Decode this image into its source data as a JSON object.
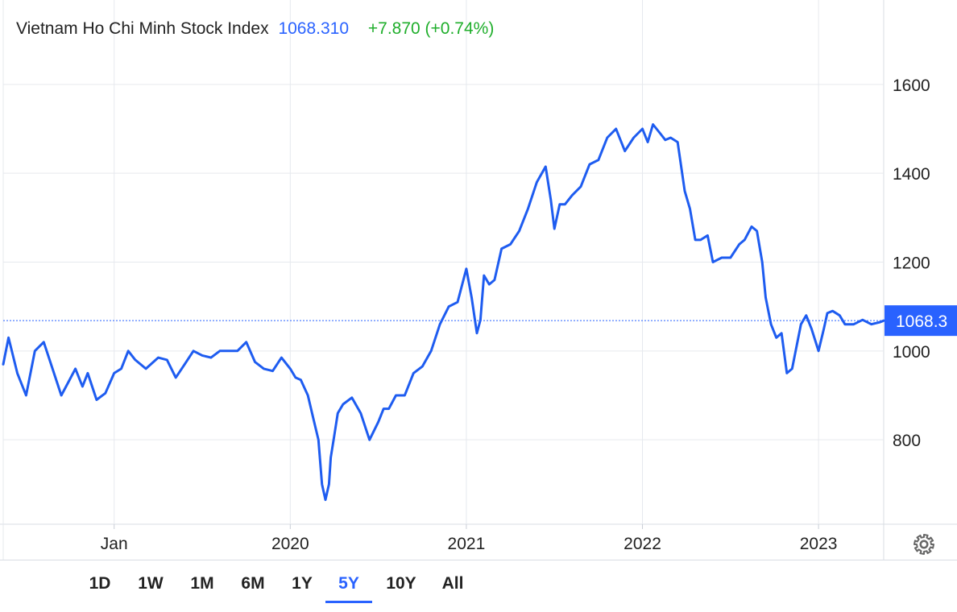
{
  "header": {
    "name": "Vietnam Ho Chi Minh Stock Index",
    "last": "1068.310",
    "change": "+7.870 (+0.74%)"
  },
  "current_label": "1068.3",
  "colors": {
    "line": "#1e5cf0",
    "accent": "#2962ff",
    "positive": "#1fae2b",
    "grid": "#e6e9ee"
  },
  "icons": {
    "settings": "gear-icon"
  },
  "toolbar": {
    "ranges": [
      "1D",
      "1W",
      "1M",
      "6M",
      "1Y",
      "5Y",
      "10Y",
      "All"
    ],
    "selected": "5Y"
  },
  "chart_data": {
    "type": "line",
    "title": "Vietnam Ho Chi Minh Stock Index",
    "y_ticks": [
      800,
      1000,
      1200,
      1400,
      1600
    ],
    "ylim": [
      610,
      1790
    ],
    "x_ticks": [
      {
        "label": "Jan",
        "x": 2019.0
      },
      {
        "label": "2020",
        "x": 2020.0
      },
      {
        "label": "2021",
        "x": 2021.0
      },
      {
        "label": "2022",
        "x": 2022.0
      },
      {
        "label": "2023",
        "x": 2023.0
      }
    ],
    "xlim": [
      2018.37,
      2023.37
    ],
    "grid": true,
    "current_value": 1068.31,
    "series": [
      {
        "x": [
          2018.37,
          2018.4,
          2018.45,
          2018.5,
          2018.55,
          2018.6,
          2018.65,
          2018.7,
          2018.74,
          2018.78,
          2018.82,
          2018.85,
          2018.9,
          2018.95,
          2019.0,
          2019.04,
          2019.08,
          2019.12,
          2019.18,
          2019.25,
          2019.3,
          2019.35,
          2019.4,
          2019.45,
          2019.5,
          2019.55,
          2019.6,
          2019.65,
          2019.7,
          2019.75,
          2019.8,
          2019.85,
          2019.9,
          2019.95,
          2020.0,
          2020.03,
          2020.06,
          2020.1,
          2020.13,
          2020.16,
          2020.18,
          2020.2,
          2020.22,
          2020.23,
          2020.25,
          2020.27,
          2020.3,
          2020.35,
          2020.4,
          2020.45,
          2020.5,
          2020.53,
          2020.56,
          2020.6,
          2020.65,
          2020.7,
          2020.75,
          2020.8,
          2020.85,
          2020.9,
          2020.95,
          2021.0,
          2021.03,
          2021.06,
          2021.08,
          2021.1,
          2021.13,
          2021.16,
          2021.2,
          2021.25,
          2021.3,
          2021.35,
          2021.4,
          2021.45,
          2021.48,
          2021.5,
          2021.53,
          2021.56,
          2021.6,
          2021.65,
          2021.7,
          2021.75,
          2021.8,
          2021.85,
          2021.9,
          2021.95,
          2022.0,
          2022.03,
          2022.06,
          2022.1,
          2022.13,
          2022.16,
          2022.2,
          2022.24,
          2022.27,
          2022.3,
          2022.33,
          2022.37,
          2022.4,
          2022.45,
          2022.5,
          2022.55,
          2022.58,
          2022.62,
          2022.65,
          2022.68,
          2022.7,
          2022.73,
          2022.76,
          2022.79,
          2022.82,
          2022.85,
          2022.87,
          2022.9,
          2022.93,
          2022.96,
          2023.0,
          2023.03,
          2023.05,
          2023.08,
          2023.12,
          2023.15,
          2023.2,
          2023.25,
          2023.3,
          2023.35,
          2023.37
        ],
        "y": [
          970,
          1030,
          950,
          900,
          1000,
          1020,
          960,
          900,
          930,
          960,
          920,
          950,
          890,
          905,
          950,
          960,
          1000,
          980,
          960,
          985,
          980,
          940,
          970,
          1000,
          990,
          985,
          1000,
          1000,
          1000,
          1020,
          975,
          960,
          955,
          985,
          960,
          940,
          935,
          900,
          850,
          800,
          700,
          665,
          700,
          760,
          810,
          860,
          880,
          895,
          860,
          800,
          840,
          870,
          870,
          900,
          900,
          950,
          965,
          1000,
          1060,
          1100,
          1110,
          1185,
          1120,
          1040,
          1070,
          1170,
          1150,
          1160,
          1230,
          1240,
          1270,
          1320,
          1380,
          1415,
          1340,
          1275,
          1330,
          1330,
          1350,
          1370,
          1420,
          1430,
          1480,
          1500,
          1450,
          1480,
          1500,
          1470,
          1510,
          1490,
          1475,
          1480,
          1470,
          1360,
          1320,
          1250,
          1250,
          1260,
          1200,
          1210,
          1210,
          1240,
          1250,
          1280,
          1270,
          1200,
          1120,
          1060,
          1030,
          1040,
          950,
          960,
          1000,
          1060,
          1080,
          1050,
          1000,
          1050,
          1085,
          1090,
          1080,
          1060,
          1060,
          1070,
          1060,
          1065,
          1068.3
        ]
      }
    ]
  }
}
